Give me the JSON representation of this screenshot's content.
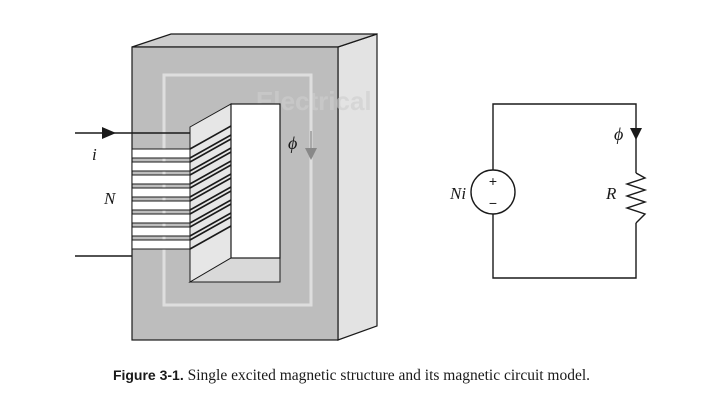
{
  "magnetic_structure": {
    "current_label": "i",
    "turns_label": "N",
    "flux_label": "ϕ",
    "watermark_text": "Electrical"
  },
  "circuit_model": {
    "source_label": "Ni",
    "plus_sign": "+",
    "minus_sign": "−",
    "resistor_label": "R",
    "flux_label": "ϕ"
  },
  "caption": {
    "figure_number": "Figure 3-1.",
    "text": "Single excited magnetic structure and its magnetic circuit model."
  },
  "colors": {
    "core_front": "#bdbdbd",
    "core_side": "#e3e3e3",
    "core_top": "#cdcdcd",
    "window": "#ffffff",
    "line": "#1a1a1a",
    "watermark": "#cfcfcf"
  }
}
